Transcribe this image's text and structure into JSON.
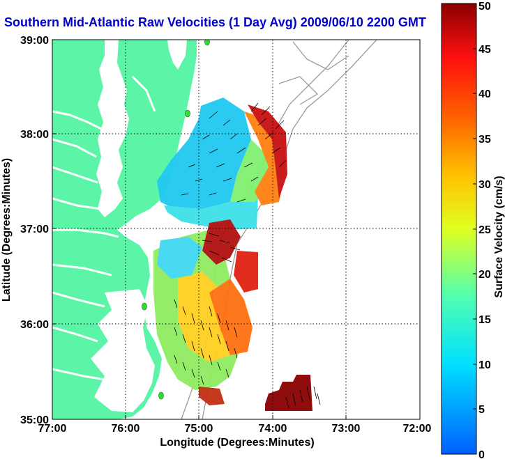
{
  "title": "Southern Mid-Atlantic Raw Velocities (1 Day Avg) 2009/06/10 2200 GMT",
  "colors": {
    "land": "#5cf5a8",
    "title": "#0000cc",
    "background": "#ffffff"
  },
  "chart_data": {
    "type": "map",
    "xlabel": "Longitude (Degrees:Minutes)",
    "ylabel": "Latitude (Degrees:Minutes)",
    "x_ticks": [
      "77:00",
      "76:00",
      "75:00",
      "74:00",
      "73:00",
      "72:00"
    ],
    "y_ticks": [
      "39:00",
      "38:00",
      "37:00",
      "36:00",
      "35:00"
    ],
    "xlim": [
      -77,
      -72
    ],
    "ylim": [
      35,
      39
    ],
    "grid": "dotted",
    "colorbar": {
      "label": "Surface Velocity (cm/s)",
      "range": [
        0,
        50
      ],
      "ticks": [
        "0",
        "5",
        "10",
        "15",
        "20",
        "25",
        "30",
        "35",
        "40",
        "45",
        "50"
      ]
    }
  }
}
